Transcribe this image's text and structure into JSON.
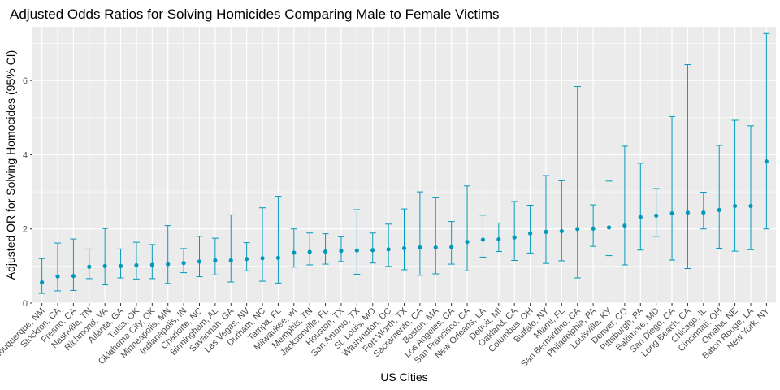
{
  "chart_data": {
    "type": "scatter",
    "title": "Adjusted Odds Ratios for Solving Homicides Comparing Male to Female Victims",
    "xlabel": "US Cities",
    "ylabel": "Adjusted OR for Solving Homocides (95% CI)",
    "ylim": [
      0,
      7.45
    ],
    "yticks": [
      0,
      2,
      4,
      6
    ],
    "grid": true,
    "point_color": "#0099bb",
    "panel_background": "#ebebeb",
    "grid_color": "#ffffff",
    "points": [
      {
        "city": "Albuquerque, NM",
        "or": 0.56,
        "lower": 0.26,
        "upper": 1.2
      },
      {
        "city": "Stockton, CA",
        "or": 0.72,
        "lower": 0.33,
        "upper": 1.62
      },
      {
        "city": "Fresno, CA",
        "or": 0.73,
        "lower": 0.34,
        "upper": 1.73
      },
      {
        "city": "Nashville, TN",
        "or": 0.98,
        "lower": 0.66,
        "upper": 1.46
      },
      {
        "city": "Richmond, VA",
        "or": 1.0,
        "lower": 0.49,
        "upper": 2.01
      },
      {
        "city": "Atlanta, GA",
        "or": 1.0,
        "lower": 0.68,
        "upper": 1.46
      },
      {
        "city": "Tulsa, OK",
        "or": 1.02,
        "lower": 0.65,
        "upper": 1.64
      },
      {
        "city": "Oklahoma City, OK",
        "or": 1.03,
        "lower": 0.66,
        "upper": 1.58
      },
      {
        "city": "Minneapolis, MN",
        "or": 1.05,
        "lower": 0.53,
        "upper": 2.09
      },
      {
        "city": "Indianapolis, IN",
        "or": 1.08,
        "lower": 0.82,
        "upper": 1.47
      },
      {
        "city": "Charlotte, NC",
        "or": 1.12,
        "lower": 0.71,
        "upper": 1.8
      },
      {
        "city": "Birmingham, AL",
        "or": 1.15,
        "lower": 0.76,
        "upper": 1.75
      },
      {
        "city": "Savannah, GA",
        "or": 1.15,
        "lower": 0.57,
        "upper": 2.38
      },
      {
        "city": "Las Vegas, NV",
        "or": 1.19,
        "lower": 0.87,
        "upper": 1.63
      },
      {
        "city": "Durham, NC",
        "or": 1.21,
        "lower": 0.59,
        "upper": 2.57
      },
      {
        "city": "Tampa, FL",
        "or": 1.22,
        "lower": 0.54,
        "upper": 2.88
      },
      {
        "city": "Milwaukee, wI",
        "or": 1.36,
        "lower": 0.97,
        "upper": 2.0
      },
      {
        "city": "Memphis, TN",
        "or": 1.38,
        "lower": 1.03,
        "upper": 1.89
      },
      {
        "city": "Jacksonville, FL",
        "or": 1.39,
        "lower": 1.05,
        "upper": 1.87
      },
      {
        "city": "Houston, TX",
        "or": 1.41,
        "lower": 1.12,
        "upper": 1.79
      },
      {
        "city": "San Antonio, TX",
        "or": 1.42,
        "lower": 0.78,
        "upper": 2.52
      },
      {
        "city": "St. Louis, MO",
        "or": 1.43,
        "lower": 1.08,
        "upper": 1.89
      },
      {
        "city": "Washington, DC",
        "or": 1.45,
        "lower": 0.99,
        "upper": 2.13
      },
      {
        "city": "Fort Worth, TX",
        "or": 1.48,
        "lower": 0.9,
        "upper": 2.54
      },
      {
        "city": "Sacramento, CA",
        "or": 1.5,
        "lower": 0.75,
        "upper": 3.0
      },
      {
        "city": "Boston, MA",
        "or": 1.5,
        "lower": 0.79,
        "upper": 2.84
      },
      {
        "city": "Los Angeles, CA",
        "or": 1.51,
        "lower": 1.05,
        "upper": 2.2
      },
      {
        "city": "San Francisco, CA",
        "or": 1.65,
        "lower": 0.87,
        "upper": 3.16
      },
      {
        "city": "New Orleans, LA",
        "or": 1.71,
        "lower": 1.24,
        "upper": 2.37
      },
      {
        "city": "Detroit, MI",
        "or": 1.72,
        "lower": 1.39,
        "upper": 2.16
      },
      {
        "city": "Oakland, CA",
        "or": 1.77,
        "lower": 1.15,
        "upper": 2.74
      },
      {
        "city": "Columbus, OH",
        "or": 1.88,
        "lower": 1.35,
        "upper": 2.64
      },
      {
        "city": "Buffalo, NY",
        "or": 1.92,
        "lower": 1.07,
        "upper": 3.44
      },
      {
        "city": "Miami, FL",
        "or": 1.94,
        "lower": 1.14,
        "upper": 3.3
      },
      {
        "city": "San Bernardino, CA",
        "or": 2.0,
        "lower": 0.68,
        "upper": 5.84
      },
      {
        "city": "Philadelphia, PA",
        "or": 2.01,
        "lower": 1.53,
        "upper": 2.65
      },
      {
        "city": "Louisville, KY",
        "or": 2.04,
        "lower": 1.28,
        "upper": 3.29
      },
      {
        "city": "Denver, CO",
        "or": 2.09,
        "lower": 1.03,
        "upper": 4.23
      },
      {
        "city": "Pittsburgh, PA",
        "or": 2.32,
        "lower": 1.43,
        "upper": 3.77
      },
      {
        "city": "Baltimore, MD",
        "or": 2.36,
        "lower": 1.8,
        "upper": 3.09
      },
      {
        "city": "San Diego, CA",
        "or": 2.42,
        "lower": 1.16,
        "upper": 5.03
      },
      {
        "city": "Long Beach, CA",
        "or": 2.44,
        "lower": 0.93,
        "upper": 6.43
      },
      {
        "city": "Chicago, IL",
        "or": 2.44,
        "lower": 2.0,
        "upper": 2.99
      },
      {
        "city": "Cincinnati, OH",
        "or": 2.51,
        "lower": 1.48,
        "upper": 4.25
      },
      {
        "city": "Omaha, NE",
        "or": 2.62,
        "lower": 1.4,
        "upper": 4.93
      },
      {
        "city": "Baton Rouge, LA",
        "or": 2.62,
        "lower": 1.44,
        "upper": 4.78
      },
      {
        "city": "New York, NY",
        "or": 3.82,
        "lower": 2.0,
        "upper": 7.27
      }
    ]
  }
}
